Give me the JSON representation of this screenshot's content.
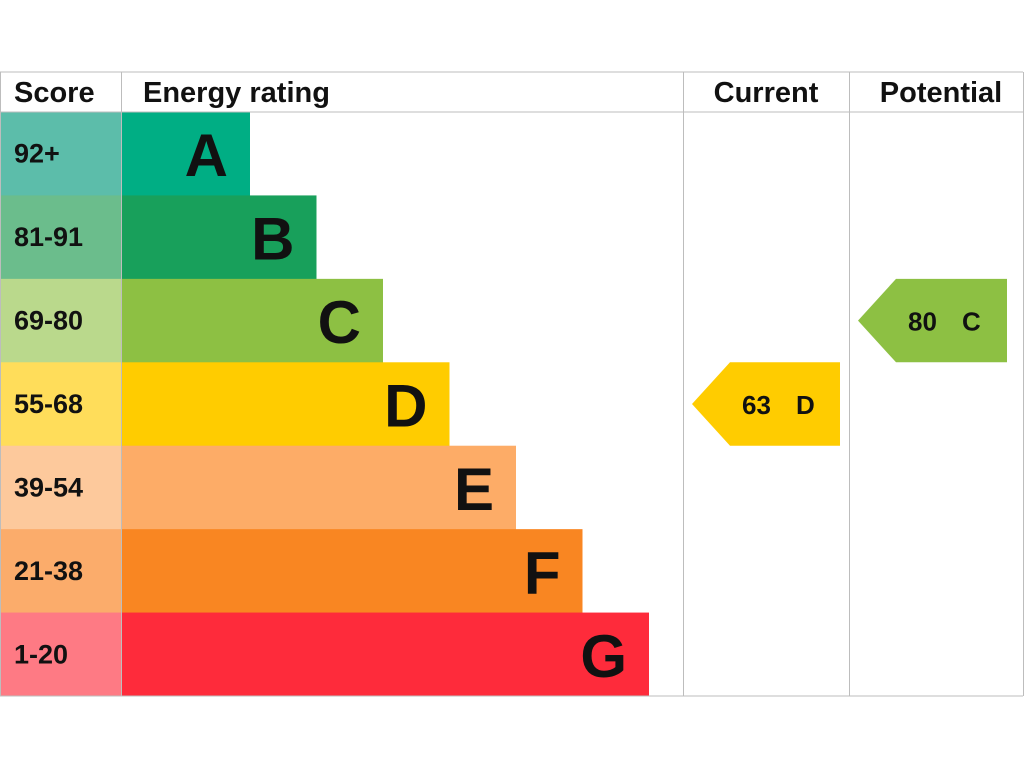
{
  "headers": [
    "Score",
    "Energy rating",
    "Current",
    "Potential"
  ],
  "bands": [
    {
      "score": "92+",
      "letter": "A",
      "color": "#00ae84",
      "score_color": "#5cbdaa"
    },
    {
      "score": "81-91",
      "letter": "B",
      "color": "#18a05b",
      "score_color": "#6bbd8c"
    },
    {
      "score": "69-80",
      "letter": "C",
      "color": "#8dc043",
      "score_color": "#bad98c"
    },
    {
      "score": "55-68",
      "letter": "D",
      "color": "#ffcc00",
      "score_color": "#ffdd5a"
    },
    {
      "score": "39-54",
      "letter": "E",
      "color": "#fdac67",
      "score_color": "#fdc99c"
    },
    {
      "score": "21-38",
      "letter": "F",
      "color": "#f98622",
      "score_color": "#fbac6b"
    },
    {
      "score": "1-20",
      "letter": "G",
      "color": "#fe2b3b",
      "score_color": "#fe7a84"
    }
  ],
  "current": {
    "value": 63,
    "letter": "D"
  },
  "potential": {
    "value": 80,
    "letter": "C"
  }
}
